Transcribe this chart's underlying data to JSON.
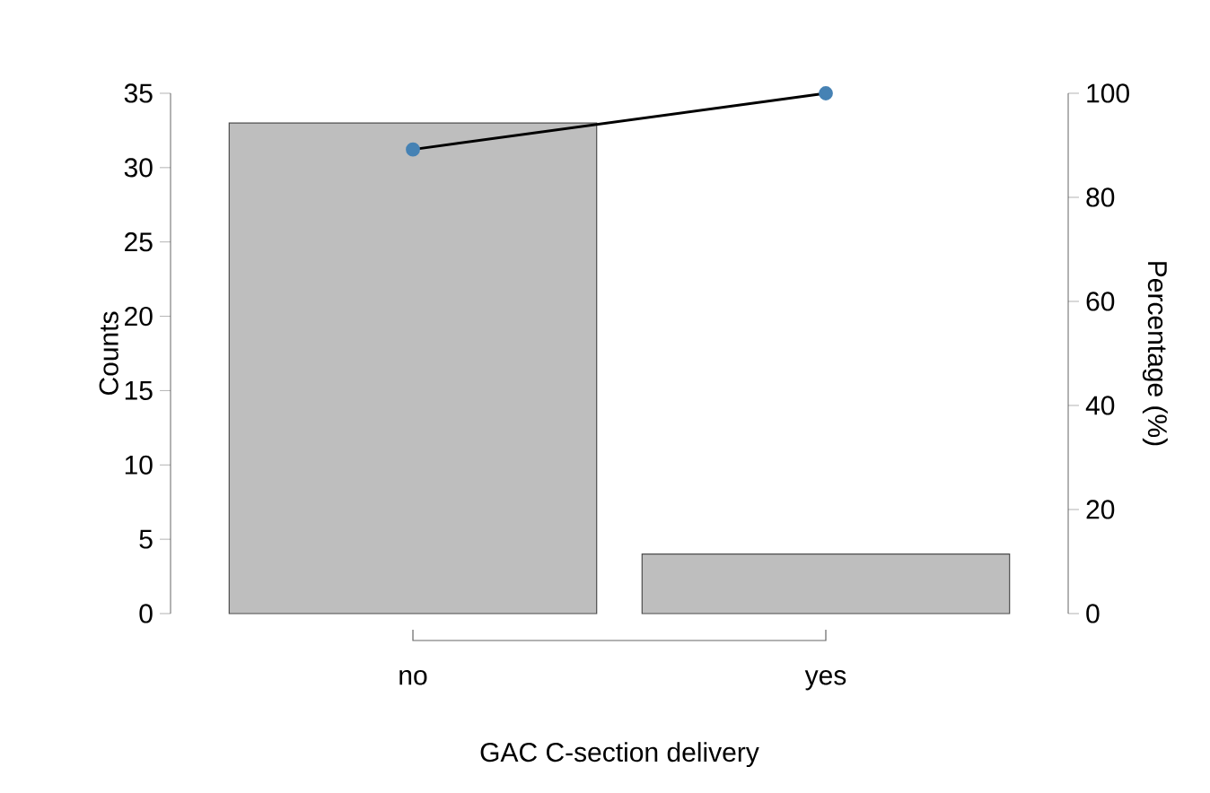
{
  "chart_data": {
    "type": "bar",
    "xlabel": "GAC C-section delivery",
    "ylabel": "Counts",
    "y2label": "Percentage (%)",
    "categories": [
      "no",
      "yes"
    ],
    "series": [
      {
        "color": "#bebebe",
        "values": [
          33,
          4
        ]
      },
      {
        "type": "line",
        "axis": "y2",
        "color": "#4682b4",
        "marker": "circle",
        "values": [
          89.2,
          100
        ]
      }
    ],
    "ylim": [
      0,
      35
    ],
    "yticks": [
      0,
      5,
      10,
      15,
      20,
      25,
      30,
      35
    ],
    "y2lim": [
      0,
      100
    ],
    "y2ticks": [
      0,
      20,
      40,
      60,
      80,
      100
    ]
  }
}
